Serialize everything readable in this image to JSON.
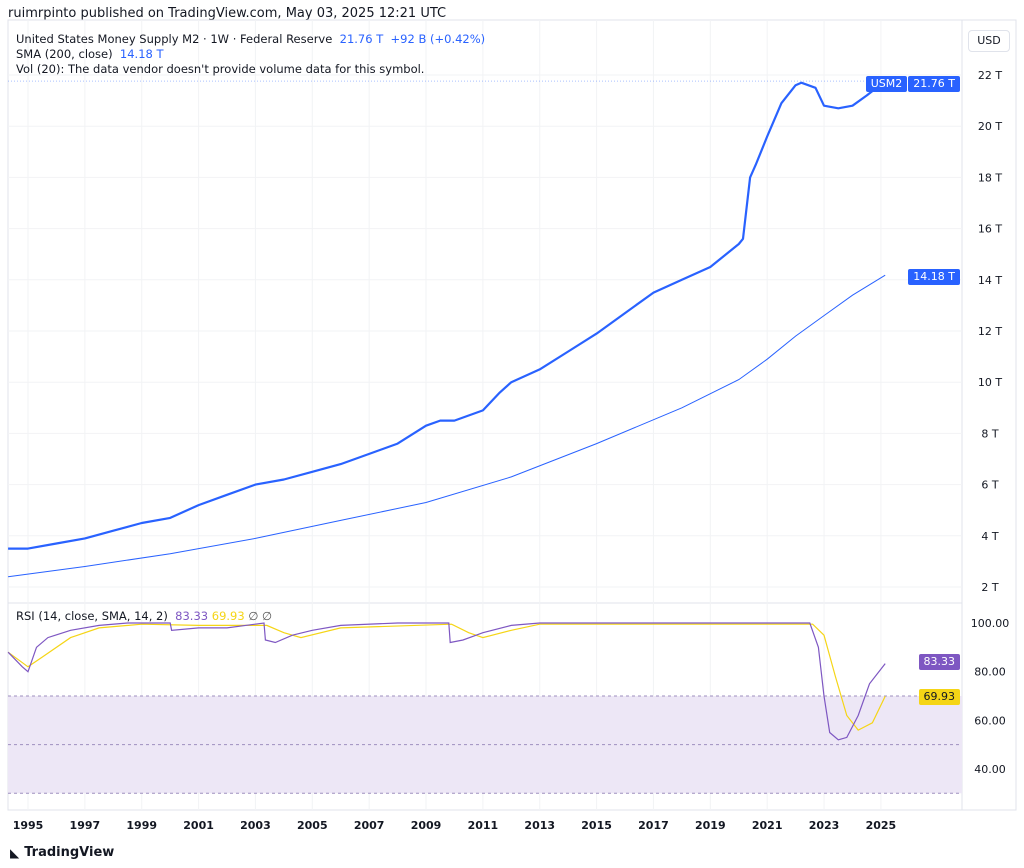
{
  "header": {
    "published": "ruimrpinto published on TradingView.com, May 03, 2025 12:21 UTC",
    "currency": "USD"
  },
  "legend": {
    "symbol": "United States Money Supply M2 · 1W · Federal Reserve",
    "last": "21.76 T",
    "change": "+92 B (+0.42%)",
    "sma_label": "SMA (200, close)",
    "sma_value": "14.18 T",
    "vol": "Vol (20): The data vendor doesn't provide volume data for this symbol.",
    "rsi_label": "RSI (14, close, SMA, 14, 2)",
    "rsi_value": "83.33",
    "rsi_sma_value": "69.93",
    "rsi_extra1": "∅",
    "rsi_extra2": "∅"
  },
  "badges": {
    "symbol": "USM2",
    "price": "21.76 T",
    "sma": "14.18 T",
    "rsi": "83.33",
    "rsi_sma": "69.93"
  },
  "colors": {
    "price": "#2962ff",
    "sma": "#2962ff",
    "rsi": "#7e57c2",
    "rsi_sma": "#f5d516",
    "band": "#ede7f6"
  },
  "footer": {
    "brand": "TradingView"
  },
  "chart_data": [
    {
      "type": "line",
      "title": "United States Money Supply M2 · 1W · Federal Reserve",
      "y_ticks": [
        "2 T",
        "4 T",
        "6 T",
        "8 T",
        "10 T",
        "12 T",
        "14 T",
        "16 T",
        "18 T",
        "20 T",
        "22 T"
      ],
      "ylim": [
        2,
        22
      ],
      "xlim": [
        1994.3,
        2028
      ],
      "series": [
        {
          "name": "USM2",
          "x": [
            1994.3,
            1995,
            1996,
            1997,
            1998,
            1999,
            2000,
            2001,
            2002,
            2003,
            2004,
            2005,
            2006,
            2007,
            2008,
            2009,
            2009.5,
            2010,
            2011,
            2011.6,
            2012,
            2013,
            2014,
            2015,
            2016,
            2017,
            2018,
            2019,
            2020,
            2020.15,
            2020.4,
            2020.6,
            2021,
            2021.5,
            2022.0,
            2022.2,
            2022.7,
            2023.0,
            2023.5,
            2024.0,
            2024.5,
            2025.15
          ],
          "y": [
            3.5,
            3.5,
            3.7,
            3.9,
            4.2,
            4.5,
            4.7,
            5.2,
            5.6,
            6.0,
            6.2,
            6.5,
            6.8,
            7.2,
            7.6,
            8.3,
            8.5,
            8.5,
            8.9,
            9.6,
            10.0,
            10.5,
            11.2,
            11.9,
            12.7,
            13.5,
            14.0,
            14.5,
            15.4,
            15.6,
            18.0,
            18.5,
            19.6,
            20.9,
            21.6,
            21.7,
            21.5,
            20.8,
            20.7,
            20.8,
            21.2,
            21.76
          ]
        },
        {
          "name": "SMA (200, close)",
          "x": [
            1994.3,
            1997,
            2000,
            2003,
            2006,
            2009,
            2012,
            2015,
            2018,
            2020,
            2021,
            2022,
            2023,
            2024,
            2025.15
          ],
          "y": [
            2.4,
            2.8,
            3.3,
            3.9,
            4.6,
            5.3,
            6.3,
            7.6,
            9.0,
            10.1,
            10.9,
            11.8,
            12.6,
            13.4,
            14.18
          ]
        }
      ],
      "x_ticks": [
        "1995",
        "1997",
        "1999",
        "2001",
        "2003",
        "2005",
        "2007",
        "2009",
        "2011",
        "2013",
        "2015",
        "2017",
        "2019",
        "2021",
        "2023",
        "2025"
      ]
    },
    {
      "type": "line",
      "title": "RSI (14, close, SMA, 14, 2)",
      "y_ticks": [
        "40.00",
        "60.00",
        "80.00",
        "100.00"
      ],
      "ylim": [
        30,
        100
      ],
      "bands": [
        30,
        50,
        70
      ],
      "series": [
        {
          "name": "RSI",
          "x": [
            1994.3,
            1994.8,
            1995,
            1995.3,
            1995.7,
            1996.5,
            1997.5,
            1998.5,
            2000,
            2000.05,
            2001,
            2002,
            2003.3,
            2003.35,
            2003.7,
            2004.3,
            2005,
            2006,
            2008,
            2009.8,
            2009.85,
            2010.3,
            2011,
            2012,
            2013,
            2016,
            2020,
            2022.5,
            2022.8,
            2023.0,
            2023.2,
            2023.5,
            2023.8,
            2024.2,
            2024.6,
            2025.15
          ],
          "y": [
            88,
            82,
            80,
            90,
            94,
            97,
            99,
            100,
            100,
            97,
            98,
            98,
            100,
            93,
            92,
            95,
            97,
            99,
            100,
            100,
            92,
            93,
            96,
            99,
            100,
            100,
            100,
            100,
            90,
            70,
            55,
            52,
            53,
            62,
            75,
            83.33
          ]
        },
        {
          "name": "RSI SMA",
          "x": [
            1994.3,
            1995,
            1995.5,
            1996.5,
            1997.5,
            1999,
            2001,
            2003.4,
            2004,
            2004.6,
            2006,
            2009.9,
            2010.5,
            2011,
            2012,
            2013,
            2020,
            2022.6,
            2023.0,
            2023.4,
            2023.8,
            2024.2,
            2024.7,
            2025.15
          ],
          "y": [
            88,
            82,
            86,
            94,
            98,
            99.5,
            99,
            99,
            96,
            94,
            98,
            99.5,
            96,
            94,
            97,
            99.5,
            99.5,
            99.5,
            95,
            78,
            62,
            56,
            59,
            69.93
          ]
        }
      ]
    }
  ]
}
